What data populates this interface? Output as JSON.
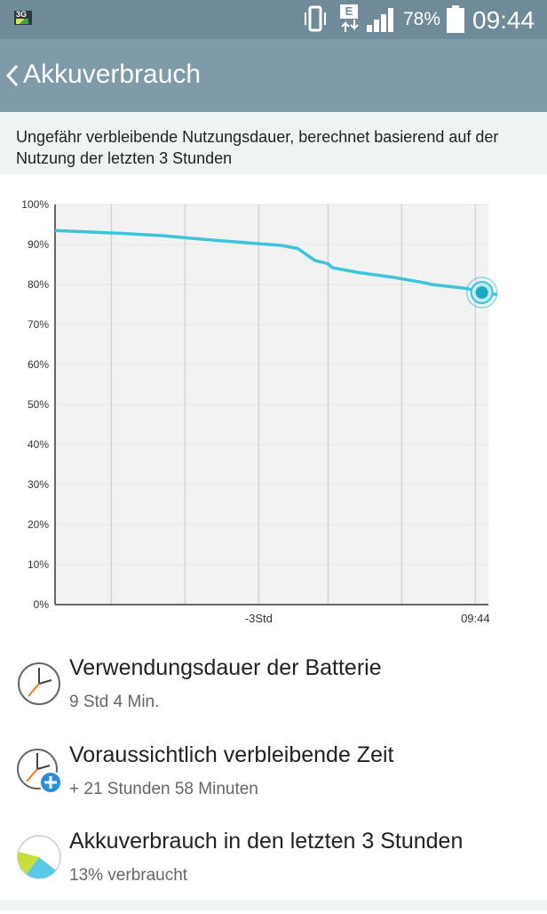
{
  "status_bar": {
    "network_type": "3G",
    "data_indicator": "E",
    "battery_percent": "78%",
    "time": "09:44"
  },
  "header": {
    "title": "Akkuverbrauch"
  },
  "info": {
    "text": "Ungefähr verbleibende Nutzungsdauer, berechnet basierend auf der Nutzung der letzten 3 Stunden"
  },
  "chart_data": {
    "type": "line",
    "y_ticks": [
      "100%",
      "90%",
      "80%",
      "70%",
      "60%",
      "50%",
      "40%",
      "30%",
      "20%",
      "10%",
      "0%"
    ],
    "x_labels": [
      "-3Std",
      "09:44"
    ],
    "ylim": [
      0,
      100
    ],
    "grid": "vertical lines",
    "series": [
      {
        "color": "#3bc4dc",
        "points": [
          [
            0.0,
            93.5
          ],
          [
            0.15,
            92.8
          ],
          [
            0.25,
            92.2
          ],
          [
            0.32,
            91.5
          ],
          [
            0.4,
            90.8
          ],
          [
            0.47,
            90.2
          ],
          [
            0.52,
            89.8
          ],
          [
            0.56,
            89.0
          ],
          [
            0.58,
            87.5
          ],
          [
            0.6,
            86.0
          ],
          [
            0.63,
            85.2
          ],
          [
            0.64,
            84.2
          ],
          [
            0.7,
            83.0
          ],
          [
            0.78,
            81.8
          ],
          [
            0.85,
            80.5
          ],
          [
            0.87,
            80.0
          ],
          [
            0.95,
            79.0
          ],
          [
            0.985,
            78.0
          ],
          [
            1.02,
            77.5
          ]
        ]
      }
    ],
    "current_marker": {
      "x": 0.985,
      "y": 78
    }
  },
  "stats": [
    {
      "icon": "clock-icon",
      "title": "Verwendungsdauer der Batterie",
      "value": "9 Std 4 Min."
    },
    {
      "icon": "clock-plus-icon",
      "title": "Voraussichtlich verbleibende Zeit",
      "value": "+ 21 Stunden 58 Minuten"
    },
    {
      "icon": "pie-chart-icon",
      "title": "Akkuverbrauch in den letzten 3 Stunden",
      "value": "13% verbraucht"
    }
  ],
  "colors": {
    "status_bar_bg": "#6f8a98",
    "title_bar_bg": "#7f9aa8",
    "info_band_bg": "#eef3f3",
    "line_color": "#3bc4dc",
    "plot_fill": "#f2f2f2"
  }
}
